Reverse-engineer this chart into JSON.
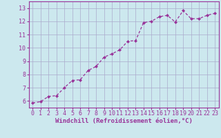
{
  "x": [
    0,
    1,
    2,
    3,
    4,
    5,
    6,
    7,
    8,
    9,
    10,
    11,
    12,
    13,
    14,
    15,
    16,
    17,
    18,
    19,
    20,
    21,
    22,
    23
  ],
  "y": [
    5.85,
    5.95,
    6.35,
    6.4,
    7.0,
    7.55,
    7.6,
    8.3,
    8.6,
    9.3,
    9.55,
    9.85,
    10.5,
    10.55,
    11.9,
    12.0,
    12.35,
    12.45,
    11.95,
    12.8,
    12.2,
    12.2,
    12.45,
    12.6
  ],
  "line_color": "#993399",
  "marker": "D",
  "marker_size": 2.0,
  "linewidth": 0.9,
  "bg_color": "#cce8ee",
  "grid_color": "#aaaacc",
  "xlabel": "Windchill (Refroidissement éolien,°C)",
  "xlabel_color": "#993399",
  "tick_color": "#993399",
  "spine_color": "#993399",
  "xlim": [
    -0.5,
    23.5
  ],
  "ylim": [
    5.5,
    13.5
  ],
  "yticks": [
    6,
    7,
    8,
    9,
    10,
    11,
    12,
    13
  ],
  "xticks": [
    0,
    1,
    2,
    3,
    4,
    5,
    6,
    7,
    8,
    9,
    10,
    11,
    12,
    13,
    14,
    15,
    16,
    17,
    18,
    19,
    20,
    21,
    22,
    23
  ],
  "xlabel_fontsize": 6.5,
  "tick_fontsize": 6.0
}
